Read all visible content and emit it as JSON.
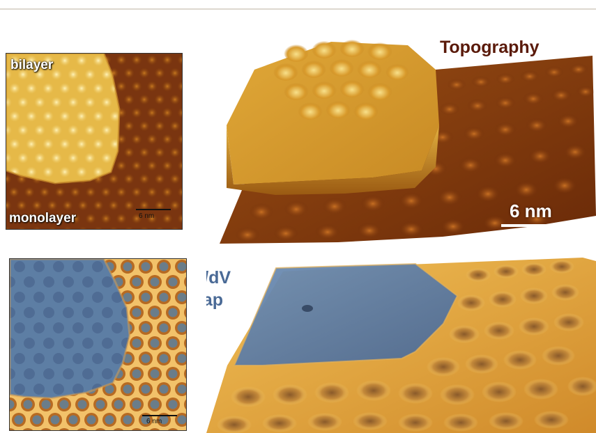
{
  "figure": {
    "topo_2d": {
      "label_top": "bilayer",
      "label_bottom": "monolayer",
      "scalebar": "6 nm"
    },
    "topo_3d": {
      "title": "Topography",
      "scalebar": "6 nm"
    },
    "didv_2d": {
      "scalebar": "6 nm"
    },
    "didv_3d": {
      "title_line1": "dI/dV",
      "title_line2": "Map"
    },
    "colors": {
      "topo_dark": "#6b2a08",
      "topo_mid": "#b8681c",
      "topo_bright": "#f4d26a",
      "didv_blue": "#5b7fa6",
      "didv_orange": "#e8a03a",
      "title_brown": "#5a1a0a",
      "title_blue": "#4a6a96"
    }
  }
}
